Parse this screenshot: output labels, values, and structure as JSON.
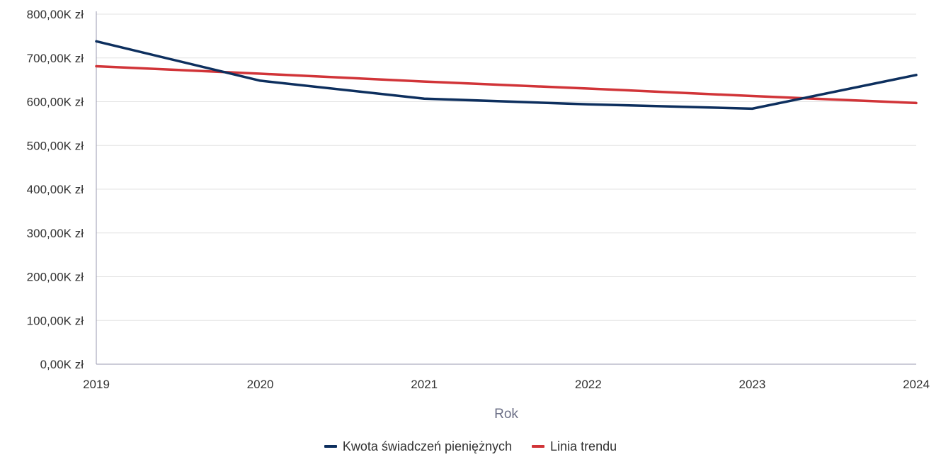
{
  "chart_data": {
    "type": "line",
    "x": [
      "2019",
      "2020",
      "2021",
      "2022",
      "2023",
      "2024"
    ],
    "xlabel": "Rok",
    "ylabel": "",
    "ylim": [
      0,
      800000
    ],
    "yticks": [
      0,
      100000,
      200000,
      300000,
      400000,
      500000,
      600000,
      700000,
      800000
    ],
    "ytick_labels": [
      "0,00K zł",
      "100,00K zł",
      "200,00K zł",
      "300,00K zł",
      "400,00K zł",
      "500,00K zł",
      "600,00K zł",
      "700,00K zł",
      "800,00K zł"
    ],
    "grid": true,
    "legend_position": "bottom-center",
    "series": [
      {
        "name": "Kwota świadczeń pieniężnych",
        "color": "#0d2f5e",
        "values": [
          738000,
          648000,
          607000,
          594000,
          584000,
          661000
        ]
      },
      {
        "name": "Linia trendu",
        "color": "#d13438",
        "values": [
          681000,
          664000,
          646000,
          630000,
          613000,
          597000
        ]
      }
    ]
  }
}
